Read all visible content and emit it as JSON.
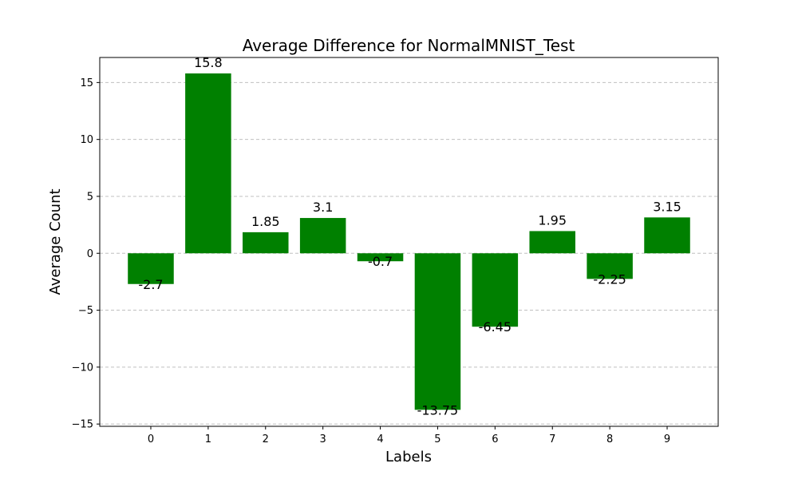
{
  "chart_data": {
    "type": "bar",
    "title": "Average Difference for NormalMNIST_Test",
    "xlabel": "Labels",
    "ylabel": "Average Count",
    "categories": [
      "0",
      "1",
      "2",
      "3",
      "4",
      "5",
      "6",
      "7",
      "8",
      "9"
    ],
    "values": [
      -2.7,
      15.8,
      1.85,
      3.1,
      -0.7,
      -13.75,
      -6.45,
      1.95,
      -2.25,
      3.15
    ],
    "data_labels": [
      "-2.7",
      "15.8",
      "1.85",
      "3.1",
      "-0.7",
      "-13.75",
      "-6.45",
      "1.95",
      "-2.25",
      "3.15"
    ],
    "ylim": [
      -15.2,
      17.2
    ],
    "yticks": [
      -15,
      -10,
      -5,
      0,
      5,
      10,
      15
    ],
    "ytick_labels": [
      "−15",
      "−10",
      "−5",
      "0",
      "5",
      "10",
      "15"
    ],
    "grid": "y-dashed",
    "bar_color": "#008000",
    "grid_color": "#c0c0c0"
  }
}
